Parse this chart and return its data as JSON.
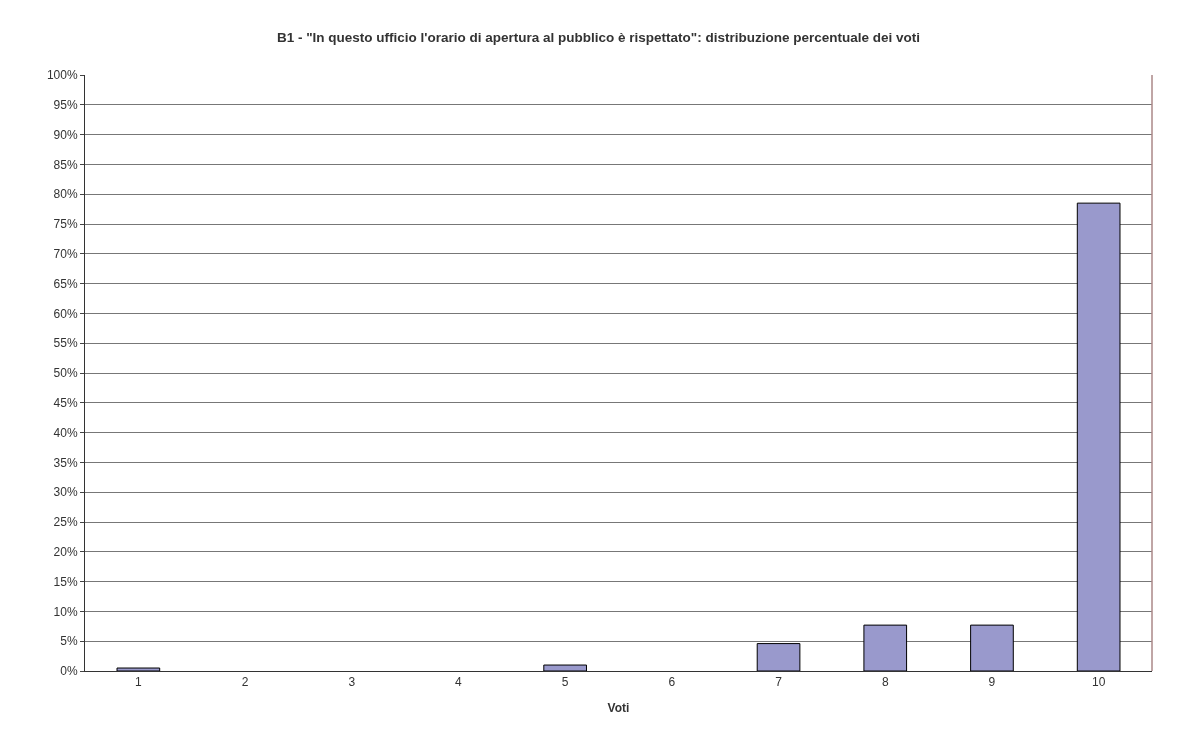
{
  "chart_data": {
    "type": "bar",
    "title": "B1 - \"In questo ufficio l'orario di apertura al pubblico è rispettato\": distribuzione percentuale dei voti",
    "xlabel": "Voti",
    "categories": [
      "1",
      "2",
      "3",
      "4",
      "5",
      "6",
      "7",
      "8",
      "9",
      "10"
    ],
    "values": [
      0.5,
      0,
      0,
      0,
      1.0,
      0,
      4.6,
      7.7,
      7.7,
      78.5
    ],
    "color": "#9999cc",
    "ylim": [
      0,
      100
    ],
    "yticks": [
      {
        "value": 0,
        "label": "0%"
      },
      {
        "value": 5,
        "label": "5%"
      },
      {
        "value": 10,
        "label": "10%"
      },
      {
        "value": 15,
        "label": "15%"
      },
      {
        "value": 20,
        "label": "20%"
      },
      {
        "value": 25,
        "label": "25%"
      },
      {
        "value": 30,
        "label": "30%"
      },
      {
        "value": 35,
        "label": "35%"
      },
      {
        "value": 40,
        "label": "40%"
      },
      {
        "value": 45,
        "label": "45%"
      },
      {
        "value": 50,
        "label": "50%"
      },
      {
        "value": 55,
        "label": "55%"
      },
      {
        "value": 60,
        "label": "60%"
      },
      {
        "value": 65,
        "label": "65%"
      },
      {
        "value": 70,
        "label": "70%"
      },
      {
        "value": 75,
        "label": "75%"
      },
      {
        "value": 80,
        "label": "80%"
      },
      {
        "value": 85,
        "label": "85%"
      },
      {
        "value": 90,
        "label": "90%"
      },
      {
        "value": 95,
        "label": "95%"
      },
      {
        "value": 100,
        "label": "100%"
      }
    ],
    "grid": "y"
  }
}
